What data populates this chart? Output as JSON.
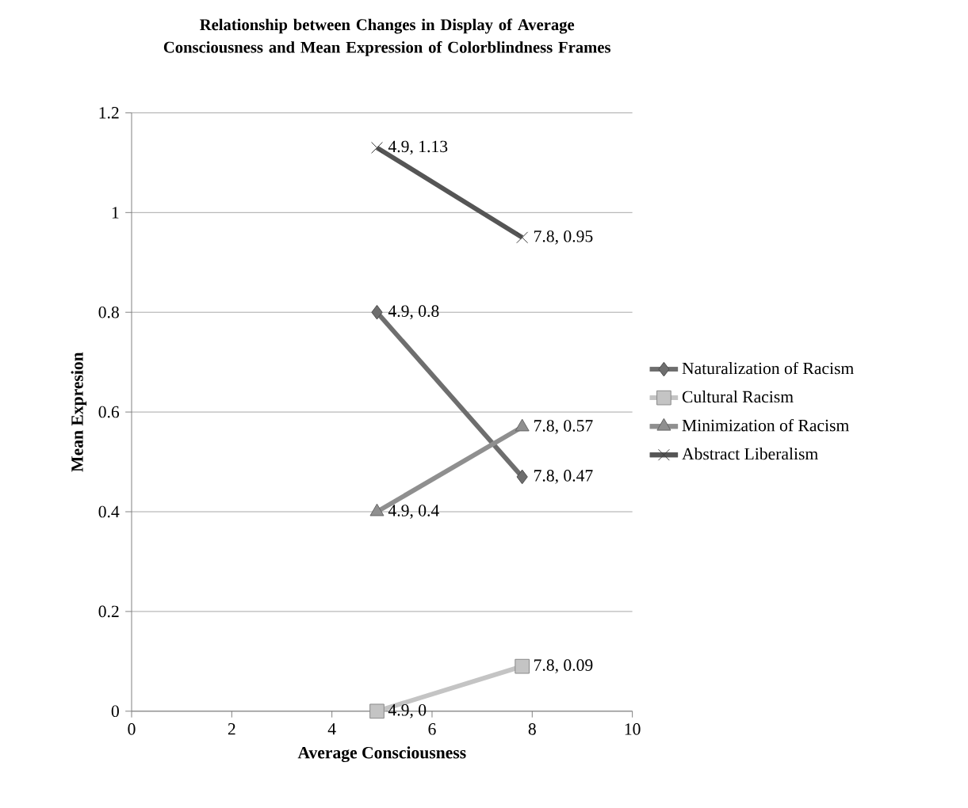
{
  "chart_data": {
    "type": "line",
    "title": "Relationship between Changes in Display of Average Consciousness and Mean Expression of Colorblindness Frames",
    "xlabel": "Average Consciousness",
    "ylabel": "Mean Expresion",
    "x": [
      4.9,
      7.8
    ],
    "series": [
      {
        "name": "Naturalization of Racism",
        "color": "#6e6e6e",
        "marker": "diamond",
        "values": [
          0.8,
          0.47
        ],
        "value_labels": [
          "4.9, 0.8",
          "7.8, 0.47"
        ]
      },
      {
        "name": "Cultural Racism",
        "color": "#c4c4c4",
        "marker": "square",
        "values": [
          0,
          0.09
        ],
        "value_labels": [
          "4.9, 0",
          "7.8, 0.09"
        ]
      },
      {
        "name": "Minimization of Racism",
        "color": "#8f8f8f",
        "marker": "triangle",
        "values": [
          0.4,
          0.57
        ],
        "value_labels": [
          "4.9, 0.4",
          "7.8, 0.57"
        ]
      },
      {
        "name": "Abstract Liberalism",
        "color": "#555555",
        "marker": "cross",
        "values": [
          1.13,
          0.95
        ],
        "value_labels": [
          "4.9, 1.13",
          "7.8, 0.95"
        ]
      }
    ],
    "xlim": [
      0,
      10
    ],
    "xticks": [
      0,
      2,
      4,
      6,
      8,
      10
    ],
    "ylim": [
      0,
      1.2
    ],
    "yticks": [
      0,
      0.2,
      0.4,
      0.6,
      0.8,
      1,
      1.2
    ],
    "grid": "y",
    "legend": "right",
    "line_style": "solid"
  }
}
